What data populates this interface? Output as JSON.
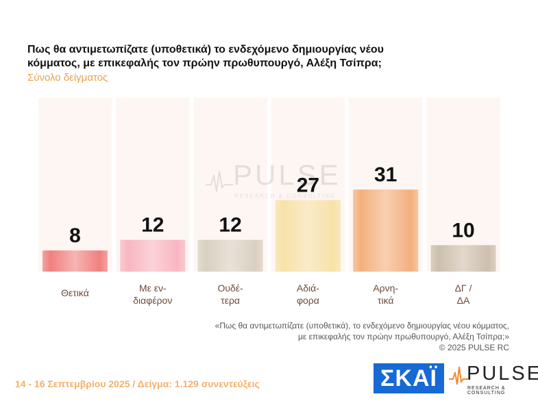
{
  "header": {
    "title": "Πως θα αντιμετωπίζατε (υποθετικά) το ενδεχόμενο δημιουργίας νέου κόμματος, με επικεφαλής τον πρώην πρωθυπουργό, Αλέξη Τσίπρα;",
    "subtitle": "Σύνολο δείγματος"
  },
  "watermark": {
    "word": "PULSE",
    "sub": "RESEARCH & CONSULTING"
  },
  "chart_data": {
    "type": "bar",
    "categories": [
      [
        "Θετικά"
      ],
      [
        "Με εν-",
        "διαφέρον"
      ],
      [
        "Ουδέ-",
        "τερα"
      ],
      [
        "Αδιά-",
        "φορα"
      ],
      [
        "Αρνη-",
        "τικά"
      ],
      [
        "ΔΓ /",
        "ΔΑ"
      ]
    ],
    "values": [
      8,
      12,
      12,
      27,
      31,
      10
    ],
    "colors": [
      "#f08080",
      "#f9b6c2",
      "#d9d0c2",
      "#f7e2a8",
      "#f4b07e",
      "#cdbfae"
    ],
    "ylim": [
      0,
      100
    ]
  },
  "quote": {
    "line1": "«Πως θα αντιμετωπίζατε (υποθετικά), το ενδεχόμενο δημιουργίας νέου κόμματος,",
    "line2": "με επικεφαλής τον πρώην πρωθυπουργό, Αλέξη Τσίπρα;»",
    "copyright": "©  2025  PULSE RC"
  },
  "footer": {
    "fieldwork": "14 - 16 Σεπτεμβρίου 2025  /  Δείγμα:  1.129 συνεντεύξεις"
  },
  "logos": {
    "skai": "ΣΚΑΪ",
    "pulse_word": "PULSE",
    "pulse_sub": "RESEARCH & CONSULTING"
  }
}
